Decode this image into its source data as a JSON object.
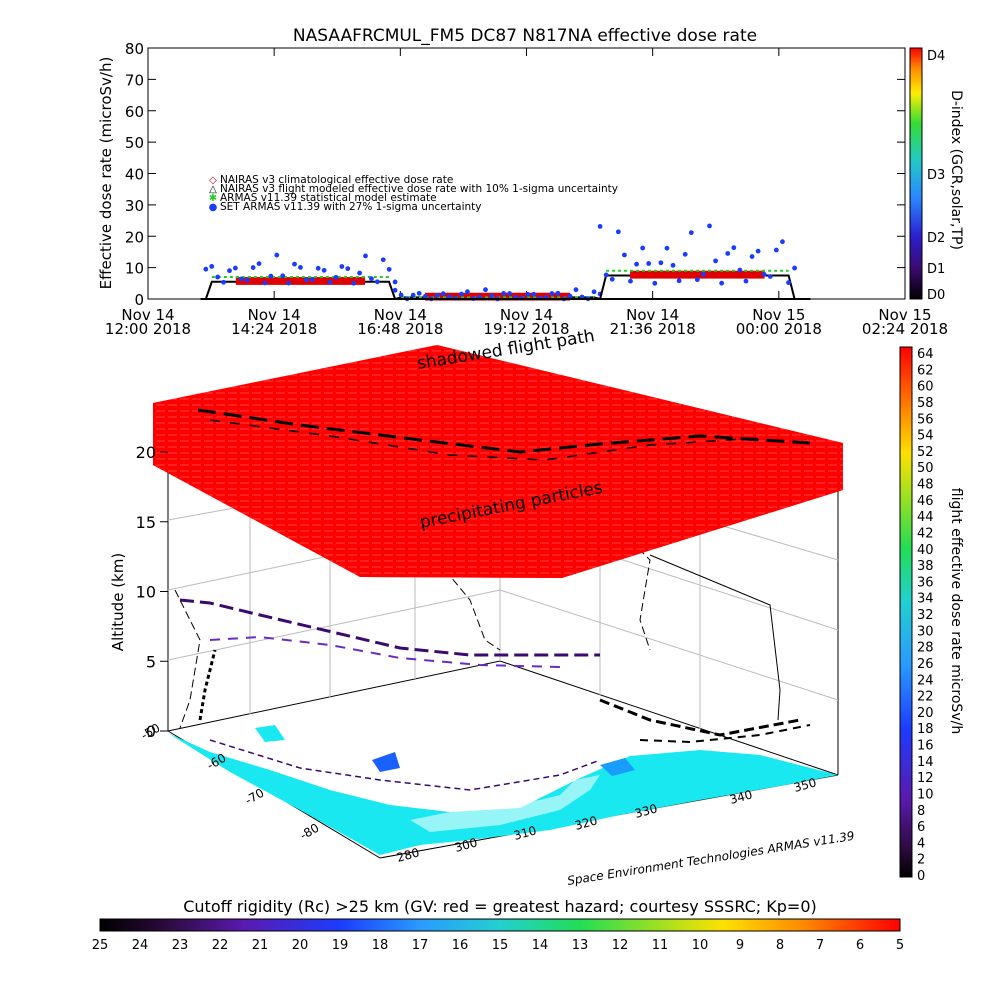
{
  "chart_data": [
    {
      "type": "scatter",
      "title": "NASAAFRCMUL_FM5 DC87 N817NA effective dose rate",
      "ylabel": "Effective dose rate (microSv/h)",
      "ylim": [
        0,
        80
      ],
      "yticks": [
        "0",
        "10",
        "20",
        "30",
        "40",
        "50",
        "60",
        "70",
        "80"
      ],
      "xlim_hours": [
        12.0,
        26.4
      ],
      "xticks": [
        {
          "h": 12.0,
          "l1": "Nov 14",
          "l2": "12:00 2018"
        },
        {
          "h": 14.4,
          "l1": "Nov 14",
          "l2": "14:24 2018"
        },
        {
          "h": 16.8,
          "l1": "Nov 14",
          "l2": "16:48 2018"
        },
        {
          "h": 19.2,
          "l1": "Nov 14",
          "l2": "19:12 2018"
        },
        {
          "h": 21.6,
          "l1": "Nov 14",
          "l2": "21:36 2018"
        },
        {
          "h": 24.0,
          "l1": "Nov 15",
          "l2": "00:00 2018"
        },
        {
          "h": 26.4,
          "l1": "Nov 15",
          "l2": "02:24 2018"
        }
      ],
      "legend": [
        {
          "symbol": "◇",
          "color": "#cc0000",
          "text": "NAIRAS v3 climatological effective dose rate"
        },
        {
          "symbol": "△",
          "color": "#000000",
          "text": "NAIRAS v3 flight modeled effective dose rate with 10% 1-sigma uncertainty"
        },
        {
          "symbol": "✱",
          "color": "#22cc22",
          "text": "ARMAS v11.39 statistical model estimate"
        },
        {
          "symbol": "●",
          "color": "#1a3cff",
          "text": "SET ARMAS v11.39 with 27% 1-sigma uncertainty"
        }
      ],
      "segments": [
        {
          "start": 13.1,
          "end": 16.7,
          "nairas": 5.5,
          "armas": 7,
          "meas_low": 5,
          "meas_high": 14
        },
        {
          "start": 16.7,
          "end": 20.6,
          "nairas": 0.5,
          "armas": 0.5,
          "meas_low": 0,
          "meas_high": 3
        },
        {
          "start": 20.6,
          "end": 24.3,
          "nairas": 7.5,
          "armas": 9,
          "meas_low": 5,
          "meas_high": 24
        }
      ],
      "dindex": {
        "label": "D-index (GCR,solar,TP)",
        "ticks": [
          "D0",
          "D1",
          "D2",
          "D3",
          "D4"
        ]
      }
    },
    {
      "type": "heatmap",
      "title": "shadowed flight path",
      "annotation": "precipitating particles",
      "zlabel": "Altitude (km)",
      "zticks": [
        "0",
        "5",
        "10",
        "15",
        "20"
      ],
      "lat_ticks": [
        "-50",
        "-60",
        "-70",
        "-80"
      ],
      "lon_ticks": [
        "280",
        "300",
        "310",
        "320",
        "330",
        "340",
        "350"
      ],
      "credit": "Space Environment Technologies ARMAS v11.39",
      "dose_colorbar": {
        "label": "flight effective dose rate microSv/h",
        "ticks": [
          "0",
          "2",
          "4",
          "6",
          "8",
          "10",
          "12",
          "14",
          "16",
          "18",
          "20",
          "22",
          "24",
          "26",
          "28",
          "30",
          "32",
          "34",
          "36",
          "38",
          "40",
          "42",
          "44",
          "46",
          "48",
          "50",
          "52",
          "54",
          "56",
          "58",
          "60",
          "62",
          "64"
        ]
      },
      "rigidity_colorbar": {
        "label": "Cutoff rigidity (Rc) >25 km (GV: red = greatest hazard; courtesy SSSRC; Kp=0)",
        "ticks": [
          "25",
          "24",
          "23",
          "22",
          "21",
          "20",
          "19",
          "18",
          "17",
          "16",
          "15",
          "14",
          "13",
          "12",
          "11",
          "10",
          "9",
          "8",
          "7",
          "6",
          "5"
        ]
      }
    }
  ]
}
